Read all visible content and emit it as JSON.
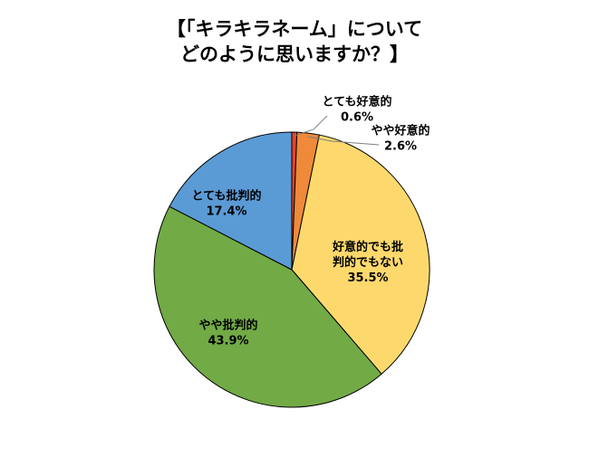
{
  "title": {
    "line1": "【「キラキラネーム」について",
    "line2": "どのように思いますか？】"
  },
  "chart_data": {
    "type": "pie",
    "title": "【「キラキラネーム」について どのように思いますか？】",
    "start": "12 o'clock",
    "direction": "clockwise",
    "slices": [
      {
        "label": "とても好意的",
        "value": 0.6,
        "value_label": "0.6%",
        "color": "#e8432b"
      },
      {
        "label": "やや好意的",
        "value": 2.6,
        "value_label": "2.6%",
        "color": "#ee8a3a"
      },
      {
        "label": "好意的でも批判的でもない",
        "value": 35.5,
        "value_label": "35.5%",
        "color": "#fdd96d"
      },
      {
        "label": "やや批判的",
        "value": 43.9,
        "value_label": "43.9%",
        "color": "#72aa46"
      },
      {
        "label": "とても批判的",
        "value": 17.4,
        "value_label": "17.4%",
        "color": "#5b9bd5"
      }
    ]
  }
}
